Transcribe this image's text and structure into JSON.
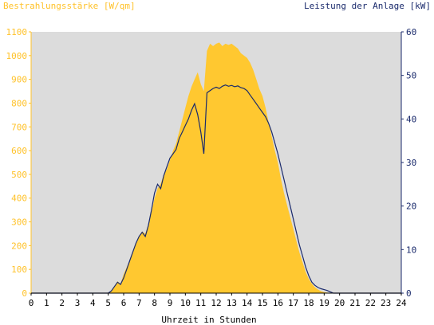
{
  "chart_data": {
    "type": "area",
    "left_axis_title": "Bestrahlungsstärke [W/qm]",
    "right_axis_title": "Leistung der Anlage [kW]",
    "xlabel": "Uhrzeit in Stunden",
    "x_range": [
      0,
      24
    ],
    "x_ticks": [
      "0",
      "1",
      "2",
      "3",
      "4",
      "5",
      "6",
      "7",
      "8",
      "9",
      "10",
      "11",
      "12",
      "13",
      "14",
      "15",
      "16",
      "17",
      "18",
      "19",
      "20",
      "21",
      "22",
      "23",
      "24"
    ],
    "left_ylim": [
      0,
      1100
    ],
    "left_ticks": [
      "0",
      "100",
      "200",
      "300",
      "400",
      "500",
      "600",
      "700",
      "800",
      "900",
      "1000",
      "1100"
    ],
    "right_ylim": [
      0,
      60
    ],
    "right_ticks": [
      "0",
      "10",
      "20",
      "30",
      "40",
      "50",
      "60"
    ],
    "grid": false,
    "colors": {
      "irradiance": "#ffc830",
      "power": "#1a2a6c",
      "plot_bg": "#dcdcdc",
      "left_axis_text": "#ffc22a",
      "right_axis_text": "#1a2a6c"
    },
    "series": [
      {
        "axis": "left",
        "x": [
          5.0,
          5.2,
          5.4,
          5.6,
          5.8,
          6.0,
          6.2,
          6.4,
          6.6,
          6.8,
          7.0,
          7.2,
          7.4,
          7.6,
          7.8,
          8.0,
          8.2,
          8.4,
          8.6,
          8.8,
          9.0,
          9.2,
          9.4,
          9.6,
          9.8,
          10.0,
          10.2,
          10.4,
          10.6,
          10.8,
          11.0,
          11.2,
          11.4,
          11.6,
          11.8,
          12.0,
          12.2,
          12.4,
          12.6,
          12.8,
          13.0,
          13.2,
          13.4,
          13.6,
          13.8,
          14.0,
          14.2,
          14.4,
          14.6,
          14.8,
          15.0,
          15.2,
          15.4,
          15.6,
          15.8,
          16.0,
          16.2,
          16.4,
          16.6,
          16.8,
          17.0,
          17.2,
          17.4,
          17.6,
          17.8,
          18.0,
          18.2,
          18.4,
          18.6,
          18.8,
          19.0,
          19.2,
          19.4,
          19.6,
          19.8,
          20.0,
          20.2,
          20.4,
          20.6
        ],
        "values": [
          0,
          10,
          30,
          50,
          40,
          80,
          110,
          140,
          180,
          210,
          240,
          260,
          250,
          290,
          340,
          400,
          440,
          460,
          500,
          520,
          560,
          600,
          630,
          680,
          730,
          780,
          830,
          870,
          900,
          930,
          880,
          850,
          1020,
          1050,
          1040,
          1050,
          1055,
          1040,
          1050,
          1045,
          1050,
          1040,
          1030,
          1010,
          1000,
          990,
          970,
          940,
          900,
          860,
          830,
          780,
          720,
          660,
          600,
          550,
          480,
          420,
          370,
          320,
          270,
          220,
          170,
          130,
          90,
          60,
          40,
          25,
          15,
          8,
          4,
          2,
          0,
          0,
          0,
          0,
          0,
          0,
          0
        ]
      },
      {
        "axis": "right",
        "x": [
          5.0,
          5.2,
          5.4,
          5.6,
          5.8,
          6.0,
          6.2,
          6.4,
          6.6,
          6.8,
          7.0,
          7.2,
          7.4,
          7.6,
          7.8,
          8.0,
          8.2,
          8.4,
          8.6,
          8.8,
          9.0,
          9.2,
          9.4,
          9.6,
          9.8,
          10.0,
          10.2,
          10.4,
          10.6,
          10.8,
          11.0,
          11.2,
          11.4,
          11.6,
          11.8,
          12.0,
          12.2,
          12.4,
          12.6,
          12.8,
          13.0,
          13.2,
          13.4,
          13.6,
          13.8,
          14.0,
          14.2,
          14.4,
          14.6,
          14.8,
          15.0,
          15.2,
          15.4,
          15.6,
          15.8,
          16.0,
          16.2,
          16.4,
          16.6,
          16.8,
          17.0,
          17.2,
          17.4,
          17.6,
          17.8,
          18.0,
          18.2,
          18.4,
          18.6,
          18.8,
          19.0,
          19.2,
          19.4,
          19.6,
          19.8,
          20.0,
          20.2,
          20.4,
          20.6
        ],
        "values": [
          0,
          0.5,
          1.5,
          2.5,
          2.0,
          3.5,
          5.5,
          7.5,
          9.5,
          11.5,
          13.0,
          14.0,
          13.0,
          15.5,
          19.0,
          23.0,
          25.0,
          24.0,
          27.0,
          29.0,
          31.0,
          32.0,
          33.0,
          35.5,
          37.0,
          38.5,
          40.0,
          42.0,
          43.5,
          41.0,
          37.0,
          32.0,
          46.0,
          46.5,
          47.0,
          47.3,
          47.0,
          47.5,
          47.8,
          47.5,
          47.7,
          47.4,
          47.6,
          47.2,
          47.0,
          46.5,
          45.5,
          44.5,
          43.5,
          42.5,
          41.5,
          40.5,
          39.0,
          37.0,
          34.5,
          32.0,
          29.0,
          26.0,
          23.0,
          20.0,
          17.0,
          14.0,
          11.0,
          8.5,
          6.0,
          4.0,
          2.5,
          1.8,
          1.3,
          1.0,
          0.8,
          0.6,
          0.3,
          0,
          0,
          0,
          0,
          0,
          0
        ]
      }
    ]
  }
}
